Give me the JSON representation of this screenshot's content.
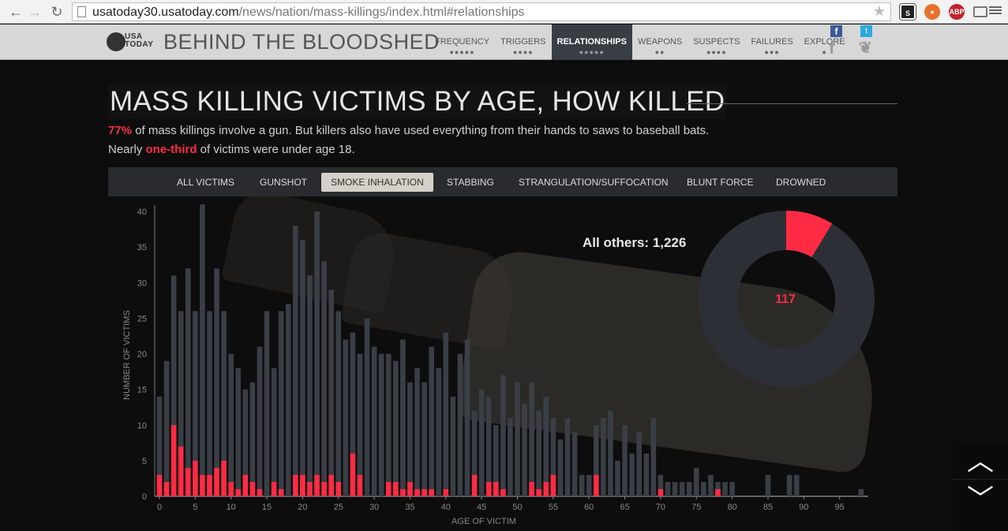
{
  "browser": {
    "url_domain": "usatoday30.usatoday.com",
    "url_path": "/news/nation/mass-killings/index.html#relationships",
    "ext_abp": "ABP"
  },
  "site": {
    "logo_line1": "USA",
    "logo_line2": "TODAY",
    "title": "BEHIND THE BLOODSHED",
    "tabs": [
      {
        "label": "FREQUENCY",
        "dots": "●●●●●"
      },
      {
        "label": "TRIGGERS",
        "dots": "●●●●"
      },
      {
        "label": "RELATIONSHIPS",
        "dots": "●●●●●"
      },
      {
        "label": "WEAPONS",
        "dots": "●●"
      },
      {
        "label": "SUSPECTS",
        "dots": "●●●●"
      },
      {
        "label": "FAILURES",
        "dots": "●●●"
      },
      {
        "label": "EXPLORE",
        "dots": "●"
      }
    ],
    "active_tab": "RELATIONSHIPS",
    "social": {
      "facebook": "f",
      "twitter": "t"
    }
  },
  "headline": "MASS KILLING VICTIMS BY AGE, HOW KILLED",
  "sub1": {
    "pct": "77%",
    "text": " of mass killings involve a gun. But killers also have used everything from their hands to saws to baseball bats."
  },
  "sub2": {
    "pre": "Nearly ",
    "hl": "one-third",
    "post": " of victims were under age 18."
  },
  "filters": [
    "ALL VICTIMS",
    "GUNSHOT",
    "SMOKE INHALATION",
    "STABBING",
    "STRANGULATION/SUFFOCATION",
    "BLUNT FORCE",
    "DROWNED"
  ],
  "active_filter": "SMOKE INHALATION",
  "donut": {
    "others_label": "All others: 1,226",
    "highlight_value": "117",
    "highlight": 117,
    "others": 1226
  },
  "nav": {
    "up": "︿",
    "down": "﹀"
  },
  "colors": {
    "accent": "#ff2b45",
    "bar": "#3a3e46"
  },
  "chart_data": {
    "type": "bar",
    "xlabel": "AGE OF VICTIM",
    "ylabel": "NUMBER OF VICTIMS",
    "ylim": [
      0,
      40
    ],
    "yticks": [
      0,
      5,
      10,
      15,
      20,
      25,
      30,
      35,
      40
    ],
    "xticks": [
      0,
      5,
      10,
      15,
      20,
      25,
      30,
      35,
      40,
      45,
      50,
      55,
      60,
      65,
      70,
      75,
      80,
      85,
      90,
      95
    ],
    "x": [
      0,
      1,
      2,
      3,
      4,
      5,
      6,
      7,
      8,
      9,
      10,
      11,
      12,
      13,
      14,
      15,
      16,
      17,
      18,
      19,
      20,
      21,
      22,
      23,
      24,
      25,
      26,
      27,
      28,
      29,
      30,
      31,
      32,
      33,
      34,
      35,
      36,
      37,
      38,
      39,
      40,
      41,
      42,
      43,
      44,
      45,
      46,
      47,
      48,
      49,
      50,
      51,
      52,
      53,
      54,
      55,
      56,
      57,
      58,
      59,
      60,
      61,
      62,
      63,
      64,
      65,
      66,
      67,
      68,
      69,
      70,
      71,
      72,
      73,
      74,
      75,
      76,
      77,
      78,
      79,
      80,
      81,
      82,
      83,
      84,
      85,
      86,
      87,
      88,
      89,
      90,
      91,
      92,
      93,
      94,
      95,
      96,
      97,
      98
    ],
    "series": [
      {
        "name": "All others",
        "values": [
          14,
          19,
          31,
          26,
          32,
          26,
          41,
          26,
          32,
          26,
          20,
          18,
          15,
          16,
          21,
          26,
          18,
          26,
          27,
          38,
          36,
          31,
          40,
          33,
          29,
          26,
          22,
          23,
          20,
          25,
          21,
          20,
          20,
          19,
          22,
          16,
          18,
          16,
          21,
          18,
          23,
          14,
          20,
          22,
          12,
          15,
          14,
          10,
          17,
          11,
          16,
          13,
          16,
          12,
          14,
          11,
          8,
          11,
          9,
          3,
          3,
          10,
          11,
          12,
          5,
          10,
          6,
          9,
          6,
          11,
          3,
          2,
          2,
          2,
          2,
          4,
          2,
          3,
          2,
          2,
          2,
          0,
          0,
          0,
          0,
          3,
          0,
          0,
          3,
          3,
          0,
          0,
          0,
          0,
          0,
          0,
          0,
          0,
          1
        ]
      },
      {
        "name": "Smoke inhalation",
        "values": [
          3,
          2,
          10,
          7,
          4,
          5,
          3,
          3,
          4,
          5,
          2,
          1,
          3,
          2,
          1,
          0,
          2,
          1,
          0,
          3,
          3,
          2,
          3,
          2,
          3,
          2,
          0,
          6,
          3,
          0,
          0,
          0,
          2,
          2,
          1,
          2,
          1,
          1,
          1,
          0,
          1,
          0,
          0,
          0,
          3,
          0,
          2,
          2,
          1,
          0,
          0,
          0,
          2,
          1,
          2,
          3,
          0,
          0,
          0,
          0,
          0,
          3,
          0,
          0,
          0,
          0,
          0,
          0,
          0,
          0,
          1,
          0,
          0,
          0,
          0,
          0,
          0,
          0,
          1,
          0,
          0,
          0,
          0,
          0,
          0,
          0,
          0,
          0,
          0,
          0,
          0,
          0,
          0,
          0,
          0,
          0,
          0,
          0,
          0
        ]
      }
    ]
  }
}
